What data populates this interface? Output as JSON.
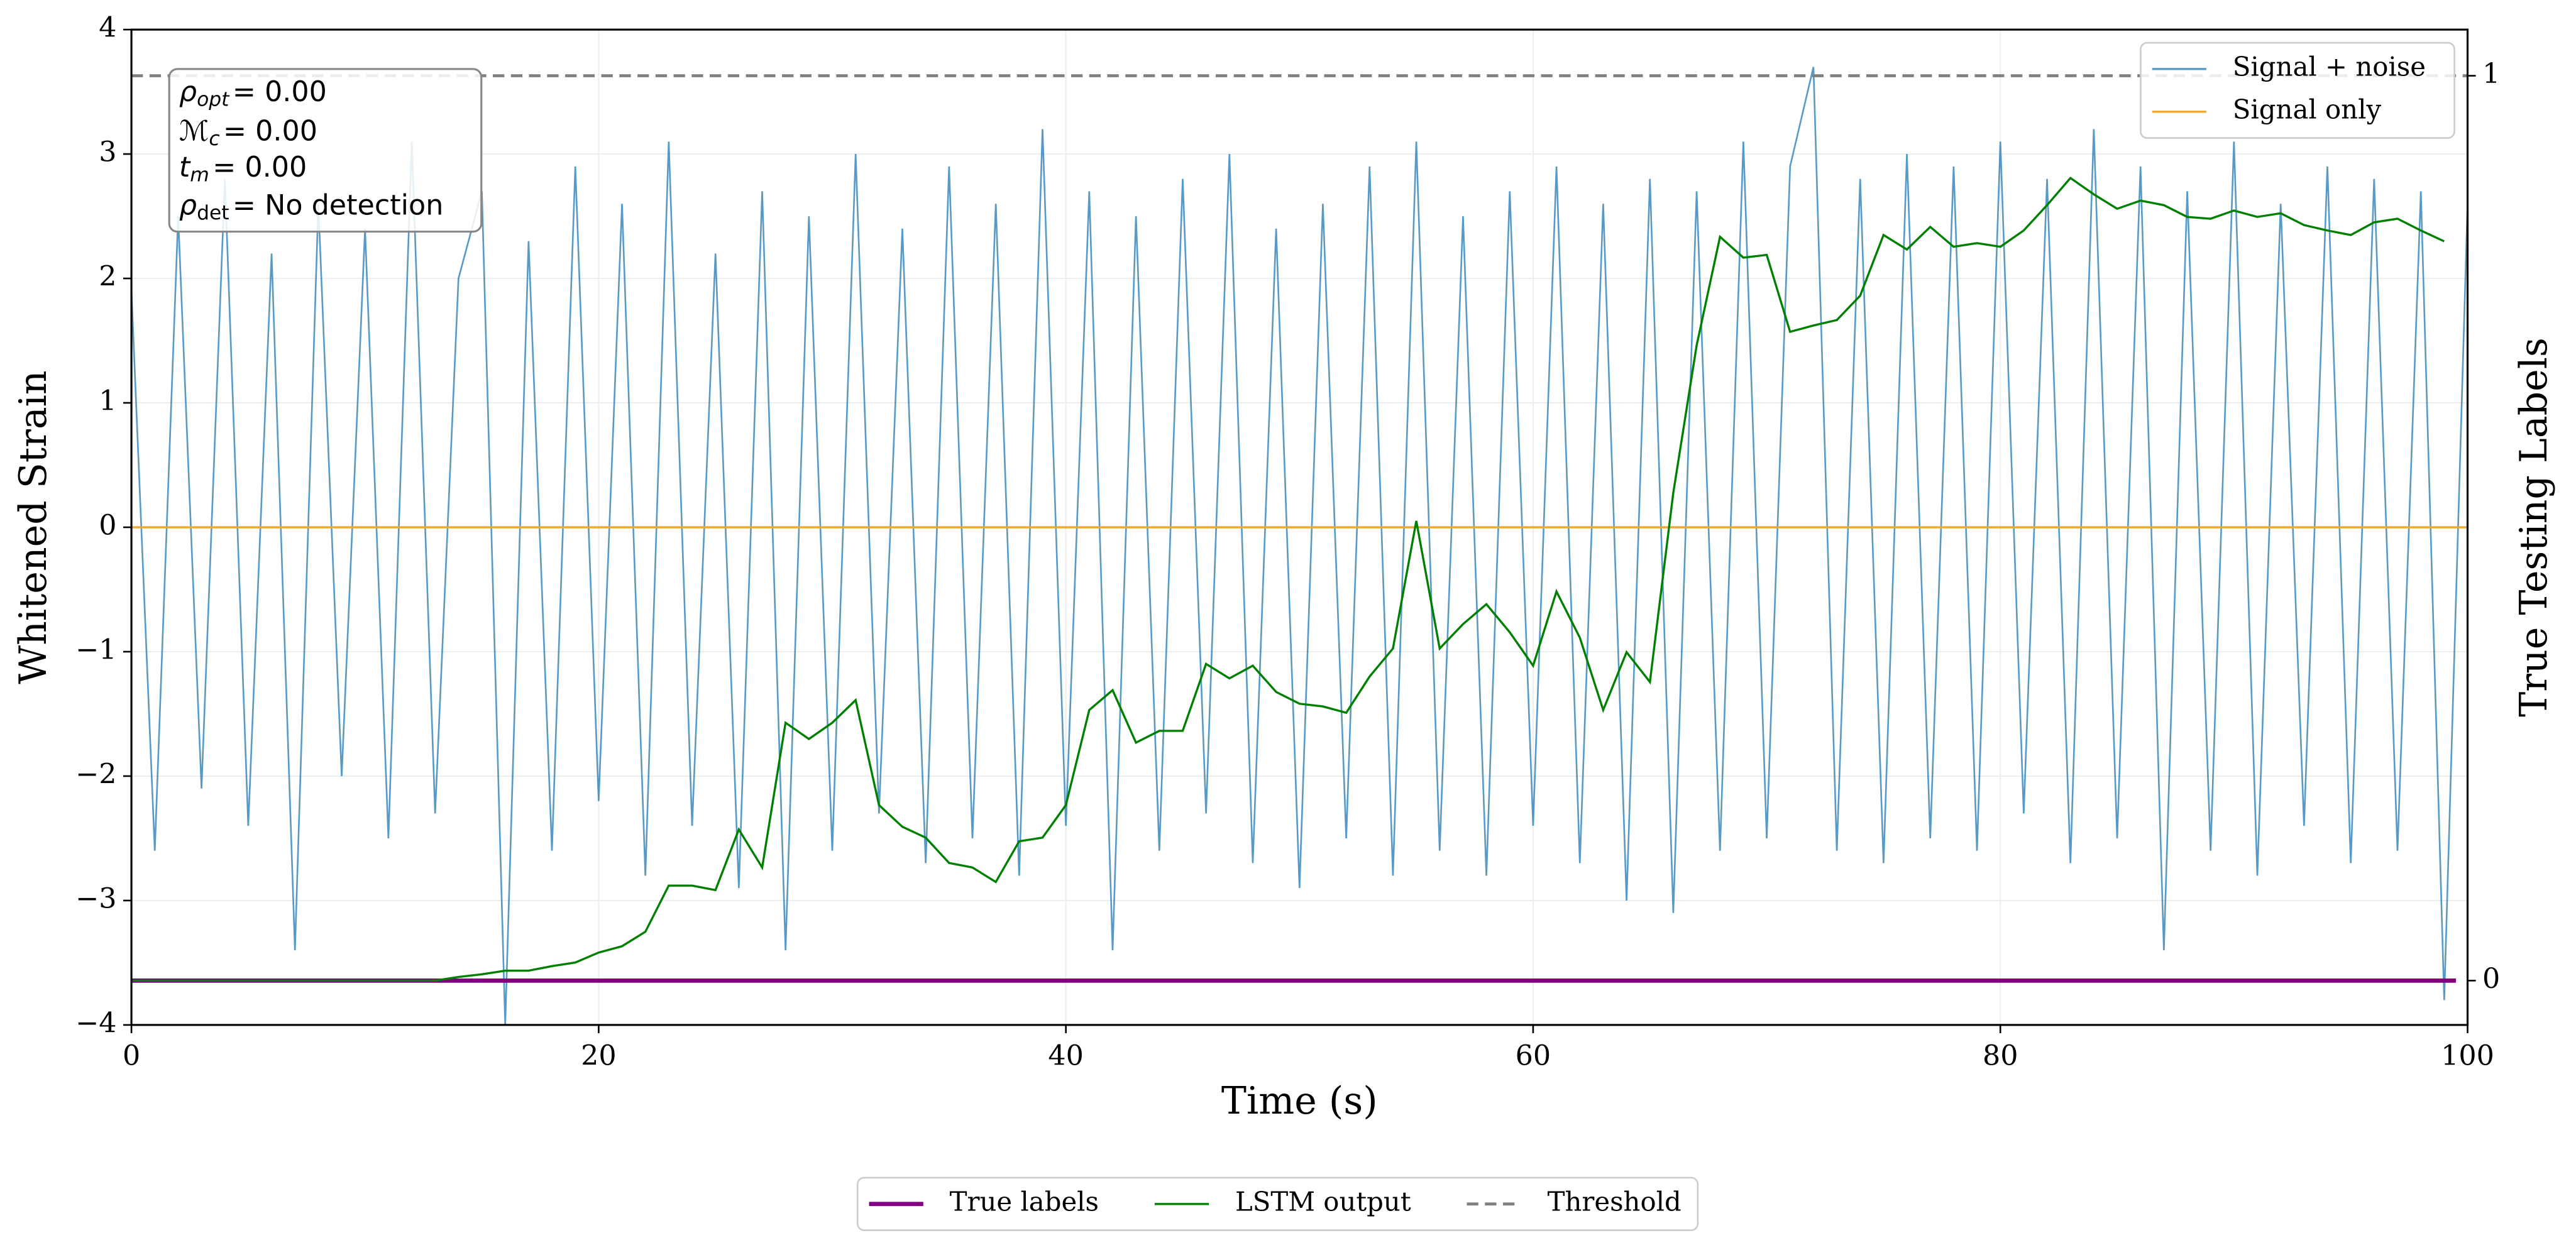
{
  "chart_data": {
    "type": "line",
    "xlabel": "Time (s)",
    "ylabel": "Whitened Strain",
    "y2label": "True Testing Labels",
    "xlim": [
      0,
      100
    ],
    "xticks": [
      0,
      20,
      40,
      60,
      80,
      100
    ],
    "ylim": [
      -4,
      4
    ],
    "yticks": [
      {
        "value": -4,
        "label": "−4"
      },
      {
        "value": -3,
        "label": "−3"
      },
      {
        "value": -2,
        "label": "−2"
      },
      {
        "value": -1,
        "label": "−1"
      },
      0,
      1,
      2,
      3,
      4
    ],
    "y2lim": [
      -0.049,
      1.051
    ],
    "y2ticks": [
      0,
      1
    ],
    "grid": true,
    "legend": "upper right",
    "legend2": "lower center",
    "annotations": [
      {
        "symbol": "ρ",
        "sub": "opt",
        "text": "= 0.00"
      },
      {
        "symbol": "ℳ",
        "sub": "c",
        "text": "= 0.00"
      },
      {
        "symbol": "t",
        "sub": "m",
        "text": "= 0.00"
      },
      {
        "symbol": "ρ",
        "sub": "det",
        "text": "= No detection"
      }
    ],
    "series": [
      {
        "name": "Signal + noise",
        "color": "#1f77b4",
        "axis": "y",
        "x": [
          0,
          1,
          2,
          3,
          4,
          5,
          6,
          7,
          8,
          9,
          10,
          11,
          12,
          13,
          14,
          15,
          16,
          17,
          18,
          19,
          20,
          21,
          22,
          23,
          24,
          25,
          26,
          27,
          28,
          29,
          30,
          31,
          32,
          33,
          34,
          35,
          36,
          37,
          38,
          39,
          40,
          41,
          42,
          43,
          44,
          45,
          46,
          47,
          48,
          49,
          50,
          51,
          52,
          53,
          54,
          55,
          56,
          57,
          58,
          59,
          60,
          61,
          62,
          63,
          64,
          65,
          66,
          67,
          68,
          69,
          70,
          71,
          72,
          73,
          74,
          75,
          76,
          77,
          78,
          79,
          80,
          81,
          82,
          83,
          84,
          85,
          86,
          87,
          88,
          89,
          90,
          91,
          92,
          93,
          94,
          95,
          96,
          97,
          98,
          99,
          100
        ],
        "values": [
          1.9,
          -2.6,
          2.5,
          -2.1,
          2.8,
          -2.4,
          2.2,
          -3.4,
          2.6,
          -2.0,
          2.4,
          -2.5,
          3.1,
          -2.3,
          2.0,
          2.7,
          -4.0,
          2.3,
          -2.6,
          2.9,
          -2.2,
          2.6,
          -2.8,
          3.1,
          -2.4,
          2.2,
          -2.9,
          2.7,
          -3.4,
          2.5,
          -2.6,
          3.0,
          -2.3,
          2.4,
          -2.7,
          2.9,
          -2.5,
          2.6,
          -2.8,
          3.2,
          -2.4,
          2.7,
          -3.4,
          2.5,
          -2.6,
          2.8,
          -2.3,
          3.0,
          -2.7,
          2.4,
          -2.9,
          2.6,
          -2.5,
          2.9,
          -2.8,
          3.1,
          -2.6,
          2.5,
          -2.8,
          2.7,
          -2.4,
          2.9,
          -2.7,
          2.6,
          -3.0,
          2.8,
          -3.1,
          2.7,
          -2.6,
          3.1,
          -2.5,
          2.9,
          3.7,
          -2.6,
          2.8,
          -2.7,
          3.0,
          -2.5,
          2.9,
          -2.6,
          3.1,
          -2.3,
          2.8,
          -2.7,
          3.2,
          -2.5,
          2.9,
          -3.4,
          2.7,
          -2.6,
          3.1,
          -2.8,
          2.6,
          -2.4,
          2.9,
          -2.7,
          2.8,
          -2.6,
          2.7,
          -3.8,
          2.6
        ]
      },
      {
        "name": "Signal only",
        "color": "#f0a830",
        "axis": "y",
        "x": [
          0,
          100
        ],
        "values": [
          0,
          0
        ]
      },
      {
        "name": "True labels",
        "color": "#800080",
        "axis": "y2",
        "x": [
          0,
          99.5
        ],
        "values": [
          0,
          0
        ]
      },
      {
        "name": "LSTM output",
        "color": "#008000",
        "axis": "y2",
        "x": [
          0,
          1,
          2,
          3,
          4,
          5,
          6,
          7,
          8,
          9,
          10,
          11,
          12,
          13,
          14,
          15,
          16,
          17,
          18,
          19,
          20,
          21,
          22,
          23,
          24,
          25,
          26,
          27,
          28,
          29,
          30,
          31,
          32,
          33,
          34,
          35,
          36,
          37,
          38,
          39,
          40,
          41,
          42,
          43,
          44,
          45,
          46,
          47,
          48,
          49,
          50,
          51,
          52,
          53,
          54,
          55,
          56,
          57,
          58,
          59,
          60,
          61,
          62,
          63,
          64,
          65,
          66,
          67,
          68,
          69,
          70,
          71,
          72,
          73,
          74,
          75,
          76,
          77,
          78,
          79,
          80,
          81,
          82,
          83,
          84,
          85,
          86,
          87,
          88,
          89,
          90,
          91,
          92,
          93,
          94,
          95,
          96,
          97,
          98,
          99
        ],
        "values": [
          0,
          0,
          0,
          0,
          0,
          0,
          0,
          0,
          0,
          0,
          0,
          0,
          0,
          0,
          0.004,
          0.007,
          0.011,
          0.011,
          0.016,
          0.02,
          0.031,
          0.038,
          0.054,
          0.105,
          0.105,
          0.1,
          0.167,
          0.125,
          0.285,
          0.267,
          0.285,
          0.31,
          0.194,
          0.17,
          0.158,
          0.13,
          0.125,
          0.109,
          0.154,
          0.158,
          0.194,
          0.299,
          0.321,
          0.263,
          0.276,
          0.276,
          0.35,
          0.334,
          0.348,
          0.319,
          0.306,
          0.303,
          0.296,
          0.336,
          0.367,
          0.508,
          0.367,
          0.394,
          0.416,
          0.385,
          0.348,
          0.43,
          0.379,
          0.299,
          0.363,
          0.33,
          0.539,
          0.702,
          0.822,
          0.799,
          0.802,
          0.717,
          0.724,
          0.73,
          0.757,
          0.824,
          0.808,
          0.833,
          0.811,
          0.815,
          0.811,
          0.829,
          0.857,
          0.887,
          0.869,
          0.853,
          0.862,
          0.857,
          0.844,
          0.842,
          0.851,
          0.844,
          0.848,
          0.835,
          0.829,
          0.824,
          0.838,
          0.842,
          0.829,
          0.817
        ]
      },
      {
        "name": "Threshold",
        "color": "#808080",
        "axis": "y2",
        "linestyle": "dashed",
        "x": [
          0,
          100
        ],
        "values": [
          1,
          1
        ]
      }
    ]
  }
}
